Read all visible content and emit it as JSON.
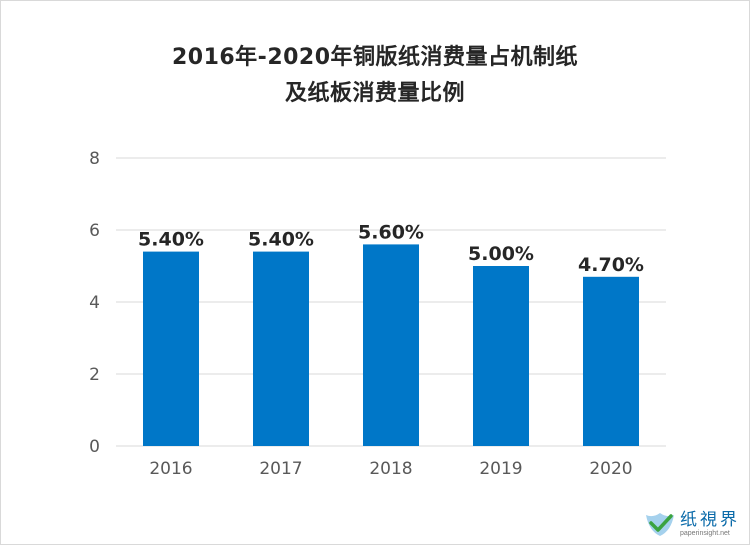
{
  "chart_data": {
    "type": "bar",
    "title_lines": [
      "2016年-2020年铜版纸消费量占机制纸",
      "及纸板消费量比例"
    ],
    "categories": [
      "2016",
      "2017",
      "2018",
      "2019",
      "2020"
    ],
    "values": [
      5.4,
      5.4,
      5.6,
      5.0,
      4.7
    ],
    "data_labels": [
      "5.40%",
      "5.40%",
      "5.60%",
      "5.00%",
      "4.70%"
    ],
    "y_ticks": [
      "0",
      "2",
      "4",
      "6",
      "8"
    ],
    "ylim": [
      0,
      8
    ],
    "grid": true,
    "legend": "none",
    "bar_color": "#0077c8",
    "grid_color": "#d9d9d9"
  },
  "logo": {
    "text_cn": "纸視界",
    "text_en": "paperinsight.net",
    "icon": "check-leaf-icon"
  }
}
